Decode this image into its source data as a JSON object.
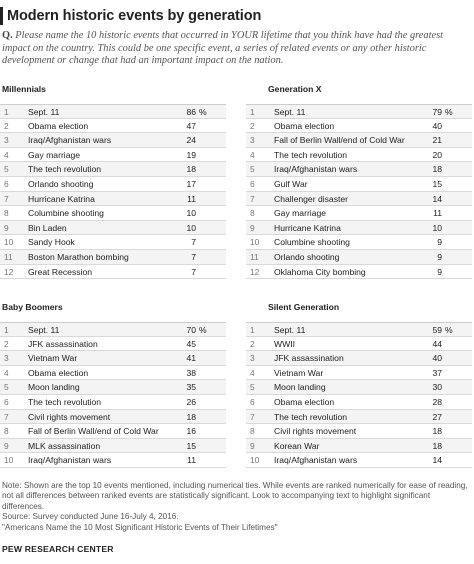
{
  "title": "Modern historic events by generation",
  "question": {
    "prefix": "Q.",
    "text": "Please name the 10 historic events that occurred in YOUR lifetime that you think have had the greatest impact on the country. This could be one specific event, a series of related events or any other historic development or change that had an important impact on the nation."
  },
  "chart_data": [
    {
      "type": "table",
      "title": "Millennials",
      "unit": "%",
      "rows": [
        {
          "rank": "1",
          "event": "Sept. 11",
          "value": 86
        },
        {
          "rank": "2",
          "event": "Obama election",
          "value": 47
        },
        {
          "rank": "3",
          "event": "Iraq/Afghanistan wars",
          "value": 24
        },
        {
          "rank": "4",
          "event": "Gay marriage",
          "value": 19
        },
        {
          "rank": "5",
          "event": "The tech revolution",
          "value": 18
        },
        {
          "rank": "6",
          "event": "Orlando shooting",
          "value": 17
        },
        {
          "rank": "7",
          "event": "Hurricane Katrina",
          "value": 11
        },
        {
          "rank": "8",
          "event": "Columbine shooting",
          "value": 10
        },
        {
          "rank": "9",
          "event": "Bin Laden",
          "value": 10
        },
        {
          "rank": "10",
          "event": "Sandy Hook",
          "value": 7
        },
        {
          "rank": "11",
          "event": "Boston Marathon bombing",
          "value": 7
        },
        {
          "rank": "12",
          "event": "Great Recession",
          "value": 7
        }
      ]
    },
    {
      "type": "table",
      "title": "Generation X",
      "unit": "%",
      "rows": [
        {
          "rank": "1",
          "event": "Sept. 11",
          "value": 79
        },
        {
          "rank": "2",
          "event": "Obama election",
          "value": 40
        },
        {
          "rank": "3",
          "event": "Fall of Berlin Wall/end of Cold War",
          "value": 21
        },
        {
          "rank": "4",
          "event": "The tech revolution",
          "value": 20
        },
        {
          "rank": "5",
          "event": "Iraq/Afghanistan wars",
          "value": 18
        },
        {
          "rank": "6",
          "event": "Gulf War",
          "value": 15
        },
        {
          "rank": "7",
          "event": "Challenger disaster",
          "value": 14
        },
        {
          "rank": "8",
          "event": "Gay marriage",
          "value": 11
        },
        {
          "rank": "9",
          "event": "Hurricane Katrina",
          "value": 10
        },
        {
          "rank": "10",
          "event": "Columbine shooting",
          "value": 9
        },
        {
          "rank": "11",
          "event": "Orlando shooting",
          "value": 9
        },
        {
          "rank": "12",
          "event": "Oklahoma City bombing",
          "value": 9
        }
      ]
    },
    {
      "type": "table",
      "title": "Baby Boomers",
      "unit": "%",
      "rows": [
        {
          "rank": "1",
          "event": "Sept. 11",
          "value": 70
        },
        {
          "rank": "2",
          "event": "JFK assassination",
          "value": 45
        },
        {
          "rank": "3",
          "event": "Vietnam War",
          "value": 41
        },
        {
          "rank": "4",
          "event": "Obama election",
          "value": 38
        },
        {
          "rank": "5",
          "event": "Moon landing",
          "value": 35
        },
        {
          "rank": "6",
          "event": "The tech revolution",
          "value": 26
        },
        {
          "rank": "7",
          "event": "Civil rights movement",
          "value": 18
        },
        {
          "rank": "8",
          "event": "Fall of Berlin Wall/end of Cold War",
          "value": 16
        },
        {
          "rank": "9",
          "event": "MLK assassination",
          "value": 15
        },
        {
          "rank": "10",
          "event": "Iraq/Afghanistan wars",
          "value": 11
        }
      ]
    },
    {
      "type": "table",
      "title": "Silent Generation",
      "unit": "%",
      "rows": [
        {
          "rank": "1",
          "event": "Sept. 11",
          "value": 59
        },
        {
          "rank": "2",
          "event": "WWII",
          "value": 44
        },
        {
          "rank": "3",
          "event": "JFK assassination",
          "value": 40
        },
        {
          "rank": "4",
          "event": "Vietnam War",
          "value": 37
        },
        {
          "rank": "5",
          "event": "Moon landing",
          "value": 30
        },
        {
          "rank": "6",
          "event": "Obama election",
          "value": 28
        },
        {
          "rank": "7",
          "event": "The tech revolution",
          "value": 27
        },
        {
          "rank": "8",
          "event": "Civil rights movement",
          "value": 18
        },
        {
          "rank": "9",
          "event": "Korean War",
          "value": 18
        },
        {
          "rank": "10",
          "event": "Iraq/Afghanistan wars",
          "value": 14
        }
      ]
    }
  ],
  "notes": "Note: Shown are the top 10 events mentioned, including numerical ties. While events are ranked numerically for ease of reading, not all differences between ranked events are statistically significant. Look to accompanying text to highlight significant differences.",
  "source": "Source: Survey conducted June 16-July 4, 2016.",
  "source_title": "\"Americans Name the 10 Most Significant Historic Events of Their Lifetimes\"",
  "organization": "PEW RESEARCH CENTER"
}
